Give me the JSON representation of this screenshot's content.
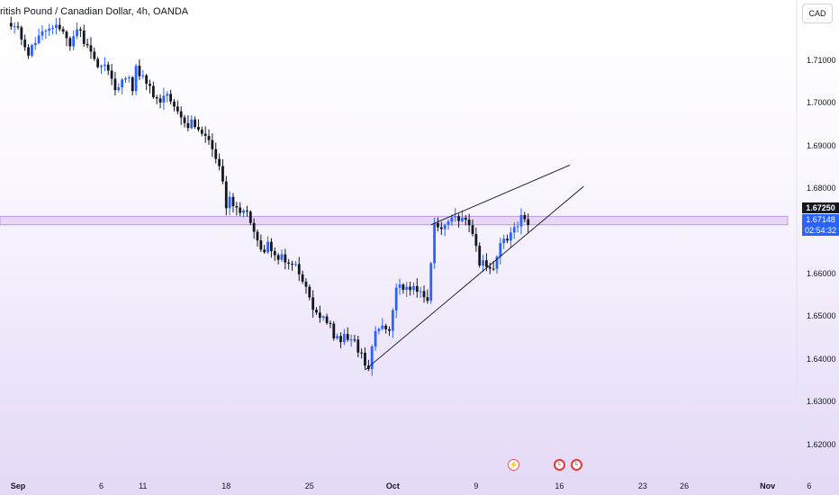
{
  "header": {
    "title": "ritish Pound / Canadian Dollar, 4h, OANDA",
    "currency": "CAD"
  },
  "badges": {
    "level_price": "1.67250",
    "last_price": "1.67148",
    "countdown": "02:54:32"
  },
  "events": {
    "split_glyph": "⚡",
    "earnings_glyph": "E"
  },
  "colors": {
    "bull": "#2962ff",
    "bear": "#131722",
    "zone": "#d9bfec",
    "zone_border": "#b48ad6",
    "trendline": "#131722"
  },
  "chart_data": {
    "type": "candlestick",
    "interval": "4h",
    "title": "ritish Pound / Canadian Dollar, 4h, OANDA",
    "ylim": [
      1.612,
      1.7208
    ],
    "yticks": [
      "1.71000",
      "1.70000",
      "1.69000",
      "1.68000",
      "1.67000",
      "1.66000",
      "1.65000",
      "1.64000",
      "1.63000",
      "1.62000"
    ],
    "xticks": [
      {
        "label": "Sep",
        "pos": 0,
        "bold": true
      },
      {
        "label": "6",
        "pos": 24
      },
      {
        "label": "11",
        "pos": 36
      },
      {
        "label": "18",
        "pos": 60
      },
      {
        "label": "25",
        "pos": 84
      },
      {
        "label": "Oct",
        "pos": 108,
        "bold": true
      },
      {
        "label": "9",
        "pos": 132
      },
      {
        "label": "16",
        "pos": 156
      },
      {
        "label": "23",
        "pos": 180
      },
      {
        "label": "26",
        "pos": 192
      },
      {
        "label": "Nov",
        "pos": 216,
        "bold": true
      },
      {
        "label": "6",
        "pos": 228
      }
    ],
    "price_path": [
      [
        -2,
        1.7188
      ],
      [
        0,
        1.7168
      ],
      [
        3,
        1.7115
      ],
      [
        6,
        1.7165
      ],
      [
        9,
        1.7178
      ],
      [
        13,
        1.7178
      ],
      [
        15,
        1.7125
      ],
      [
        17,
        1.7178
      ],
      [
        22,
        1.7098
      ],
      [
        26,
        1.7085
      ],
      [
        28,
        1.7025
      ],
      [
        31,
        1.7065
      ],
      [
        33,
        1.7035
      ],
      [
        34,
        1.7085
      ],
      [
        38,
        1.7035
      ],
      [
        41,
        1.7005
      ],
      [
        44,
        1.7015
      ],
      [
        46,
        1.6975
      ],
      [
        48,
        1.6945
      ],
      [
        51,
        1.6955
      ],
      [
        53,
        1.6935
      ],
      [
        56,
        1.6895
      ],
      [
        58,
        1.6845
      ],
      [
        60,
        1.6765
      ],
      [
        61,
        1.6775
      ],
      [
        63,
        1.6745
      ],
      [
        66,
        1.6755
      ],
      [
        70,
        1.6655
      ],
      [
        72,
        1.6665
      ],
      [
        75,
        1.6645
      ],
      [
        78,
        1.6625
      ],
      [
        80,
        1.6615
      ],
      [
        82,
        1.6585
      ],
      [
        84,
        1.6535
      ],
      [
        86,
        1.6505
      ],
      [
        89,
        1.6485
      ],
      [
        92,
        1.6445
      ],
      [
        95,
        1.6455
      ],
      [
        97,
        1.6435
      ],
      [
        99,
        1.6405
      ],
      [
        101,
        1.6375
      ],
      [
        102,
        1.644
      ],
      [
        103,
        1.646
      ],
      [
        105,
        1.6488
      ],
      [
        107,
        1.6476
      ],
      [
        109,
        1.657
      ],
      [
        112,
        1.6568
      ],
      [
        115,
        1.656
      ],
      [
        118,
        1.6548
      ],
      [
        120,
        1.6712
      ],
      [
        124,
        1.672
      ],
      [
        126,
        1.6725
      ],
      [
        128,
        1.6722
      ],
      [
        130,
        1.6725
      ],
      [
        131,
        1.6685
      ],
      [
        133,
        1.6625
      ],
      [
        135,
        1.6618
      ],
      [
        137,
        1.6608
      ],
      [
        139,
        1.6675
      ],
      [
        142,
        1.6695
      ],
      [
        144,
        1.6722
      ],
      [
        145,
        1.6732
      ],
      [
        146,
        1.6718
      ],
      [
        147,
        1.6712
      ]
    ],
    "range_high": 1.6758,
    "range_low": 1.6365,
    "last_price": 1.67148,
    "zone": {
      "top": 1.6735,
      "bottom": 1.6715
    },
    "trendlines": [
      {
        "label": "upper",
        "from": [
          119,
          1.6715
        ],
        "to": [
          159,
          1.6855
        ]
      },
      {
        "label": "lower",
        "from": [
          100,
          1.6375
        ],
        "to": [
          163,
          1.6805
        ]
      }
    ]
  }
}
